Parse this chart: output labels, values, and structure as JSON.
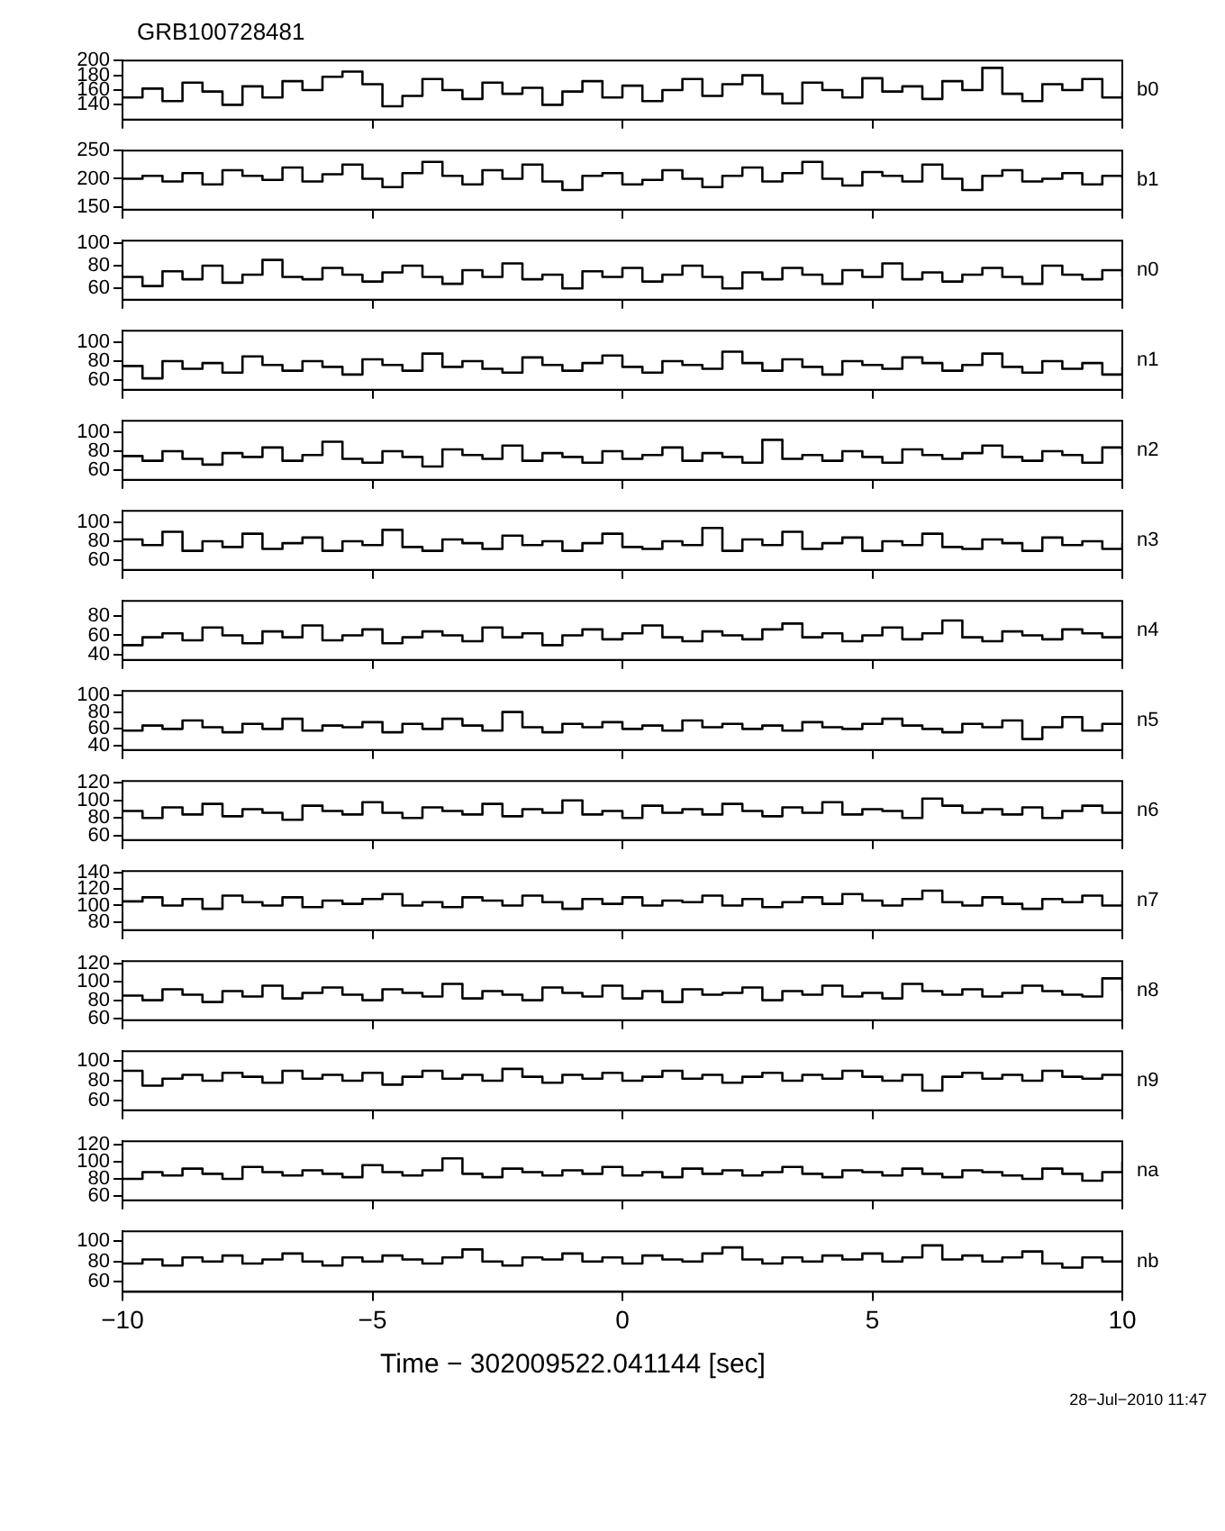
{
  "chart_data": [
    {
      "type": "step",
      "title": "GRB100728481",
      "x": [
        -10,
        -9.6,
        -9.2,
        -8.8,
        -8.4,
        -8,
        -7.6,
        -7.2,
        -6.8,
        -6.4,
        -6,
        -5.6,
        -5.2,
        -4.8,
        -4.4,
        -4,
        -3.6,
        -3.2,
        -2.8,
        -2.4,
        -2,
        -1.6,
        -1.2,
        -0.8,
        -0.4,
        0,
        0.4,
        0.8,
        1.2,
        1.6,
        2,
        2.4,
        2.8,
        3.2,
        3.6,
        4,
        4.4,
        4.8,
        5.2,
        5.6,
        6,
        6.4,
        6.8,
        7.2,
        7.6,
        8,
        8.4,
        8.8,
        9.2,
        9.6,
        10
      ],
      "xlim": [
        -10,
        10
      ],
      "xticks": [
        -10,
        -5,
        0,
        5,
        10
      ],
      "ylim": [
        120,
        200
      ],
      "yticks": [
        140,
        160,
        180,
        200
      ],
      "tick_labels": "y",
      "series": [
        {
          "name": "b0",
          "color": "#000000",
          "values": [
            150,
            162,
            145,
            170,
            158,
            140,
            165,
            150,
            172,
            160,
            178,
            185,
            168,
            138,
            152,
            175,
            160,
            148,
            170,
            155,
            163,
            140,
            158,
            172,
            150,
            166,
            145,
            160,
            175,
            152,
            168,
            180,
            155,
            142,
            170,
            160,
            150,
            176,
            158,
            165,
            148,
            172,
            160,
            190,
            155,
            145,
            168,
            160,
            175,
            150,
            158
          ]
        }
      ]
    },
    {
      "type": "step",
      "x": [
        -10,
        -9.6,
        -9.2,
        -8.8,
        -8.4,
        -8,
        -7.6,
        -7.2,
        -6.8,
        -6.4,
        -6,
        -5.6,
        -5.2,
        -4.8,
        -4.4,
        -4,
        -3.6,
        -3.2,
        -2.8,
        -2.4,
        -2,
        -1.6,
        -1.2,
        -0.8,
        -0.4,
        0,
        0.4,
        0.8,
        1.2,
        1.6,
        2,
        2.4,
        2.8,
        3.2,
        3.6,
        4,
        4.4,
        4.8,
        5.2,
        5.6,
        6,
        6.4,
        6.8,
        7.2,
        7.6,
        8,
        8.4,
        8.8,
        9.2,
        9.6,
        10
      ],
      "xlim": [
        -10,
        10
      ],
      "xticks": [
        -10,
        -5,
        0,
        5,
        10
      ],
      "ylim": [
        145,
        250
      ],
      "yticks": [
        150,
        200,
        250
      ],
      "tick_labels": "y",
      "series": [
        {
          "name": "b1",
          "color": "#000000",
          "values": [
            200,
            205,
            195,
            210,
            190,
            215,
            205,
            198,
            220,
            195,
            208,
            225,
            200,
            185,
            210,
            230,
            205,
            190,
            215,
            200,
            225,
            195,
            180,
            205,
            210,
            190,
            198,
            215,
            200,
            185,
            205,
            220,
            195,
            210,
            230,
            200,
            188,
            212,
            205,
            195,
            225,
            200,
            180,
            205,
            215,
            195,
            200,
            210,
            190,
            205,
            200
          ]
        }
      ]
    },
    {
      "type": "step",
      "x": [
        -10,
        -9.6,
        -9.2,
        -8.8,
        -8.4,
        -8,
        -7.6,
        -7.2,
        -6.8,
        -6.4,
        -6,
        -5.6,
        -5.2,
        -4.8,
        -4.4,
        -4,
        -3.6,
        -3.2,
        -2.8,
        -2.4,
        -2,
        -1.6,
        -1.2,
        -0.8,
        -0.4,
        0,
        0.4,
        0.8,
        1.2,
        1.6,
        2,
        2.4,
        2.8,
        3.2,
        3.6,
        4,
        4.4,
        4.8,
        5.2,
        5.6,
        6,
        6.4,
        6.8,
        7.2,
        7.6,
        8,
        8.4,
        8.8,
        9.2,
        9.6,
        10
      ],
      "xlim": [
        -10,
        10
      ],
      "xticks": [
        -10,
        -5,
        0,
        5,
        10
      ],
      "ylim": [
        50,
        102
      ],
      "yticks": [
        60,
        80,
        100
      ],
      "tick_labels": "y",
      "series": [
        {
          "name": "n0",
          "color": "#000000",
          "values": [
            70,
            62,
            75,
            68,
            80,
            65,
            72,
            85,
            70,
            68,
            78,
            72,
            66,
            74,
            80,
            70,
            64,
            76,
            70,
            82,
            68,
            72,
            60,
            75,
            70,
            78,
            66,
            72,
            80,
            70,
            60,
            74,
            68,
            78,
            72,
            64,
            76,
            70,
            82,
            68,
            74,
            66,
            72,
            78,
            70,
            64,
            80,
            72,
            68,
            76,
            70
          ]
        }
      ]
    },
    {
      "type": "step",
      "x": [
        -10,
        -9.6,
        -9.2,
        -8.8,
        -8.4,
        -8,
        -7.6,
        -7.2,
        -6.8,
        -6.4,
        -6,
        -5.6,
        -5.2,
        -4.8,
        -4.4,
        -4,
        -3.6,
        -3.2,
        -2.8,
        -2.4,
        -2,
        -1.6,
        -1.2,
        -0.8,
        -0.4,
        0,
        0.4,
        0.8,
        1.2,
        1.6,
        2,
        2.4,
        2.8,
        3.2,
        3.6,
        4,
        4.4,
        4.8,
        5.2,
        5.6,
        6,
        6.4,
        6.8,
        7.2,
        7.6,
        8,
        8.4,
        8.8,
        9.2,
        9.6,
        10
      ],
      "xlim": [
        -10,
        10
      ],
      "xticks": [
        -10,
        -5,
        0,
        5,
        10
      ],
      "ylim": [
        50,
        112
      ],
      "yticks": [
        60,
        80,
        100
      ],
      "tick_labels": "y",
      "series": [
        {
          "name": "n1",
          "color": "#000000",
          "values": [
            75,
            62,
            80,
            72,
            78,
            68,
            85,
            76,
            70,
            80,
            74,
            66,
            82,
            76,
            70,
            88,
            74,
            80,
            72,
            68,
            84,
            76,
            70,
            78,
            86,
            74,
            68,
            80,
            76,
            72,
            90,
            78,
            70,
            82,
            74,
            66,
            80,
            76,
            72,
            84,
            78,
            70,
            76,
            88,
            74,
            68,
            80,
            72,
            78,
            66,
            74
          ]
        }
      ]
    },
    {
      "type": "step",
      "x": [
        -10,
        -9.6,
        -9.2,
        -8.8,
        -8.4,
        -8,
        -7.6,
        -7.2,
        -6.8,
        -6.4,
        -6,
        -5.6,
        -5.2,
        -4.8,
        -4.4,
        -4,
        -3.6,
        -3.2,
        -2.8,
        -2.4,
        -2,
        -1.6,
        -1.2,
        -0.8,
        -0.4,
        0,
        0.4,
        0.8,
        1.2,
        1.6,
        2,
        2.4,
        2.8,
        3.2,
        3.6,
        4,
        4.4,
        4.8,
        5.2,
        5.6,
        6,
        6.4,
        6.8,
        7.2,
        7.6,
        8,
        8.4,
        8.8,
        9.2,
        9.6,
        10
      ],
      "xlim": [
        -10,
        10
      ],
      "xticks": [
        -10,
        -5,
        0,
        5,
        10
      ],
      "ylim": [
        50,
        112
      ],
      "yticks": [
        60,
        80,
        100
      ],
      "tick_labels": "y",
      "series": [
        {
          "name": "n2",
          "color": "#000000",
          "values": [
            75,
            70,
            80,
            72,
            66,
            78,
            74,
            84,
            70,
            76,
            90,
            72,
            68,
            80,
            74,
            64,
            82,
            76,
            72,
            86,
            70,
            78,
            74,
            68,
            80,
            72,
            76,
            84,
            70,
            78,
            74,
            68,
            92,
            72,
            76,
            70,
            80,
            74,
            68,
            82,
            76,
            72,
            78,
            86,
            74,
            70,
            80,
            76,
            68,
            84,
            76
          ]
        }
      ]
    },
    {
      "type": "step",
      "x": [
        -10,
        -9.6,
        -9.2,
        -8.8,
        -8.4,
        -8,
        -7.6,
        -7.2,
        -6.8,
        -6.4,
        -6,
        -5.6,
        -5.2,
        -4.8,
        -4.4,
        -4,
        -3.6,
        -3.2,
        -2.8,
        -2.4,
        -2,
        -1.6,
        -1.2,
        -0.8,
        -0.4,
        0,
        0.4,
        0.8,
        1.2,
        1.6,
        2,
        2.4,
        2.8,
        3.2,
        3.6,
        4,
        4.4,
        4.8,
        5.2,
        5.6,
        6,
        6.4,
        6.8,
        7.2,
        7.6,
        8,
        8.4,
        8.8,
        9.2,
        9.6,
        10
      ],
      "xlim": [
        -10,
        10
      ],
      "xticks": [
        -10,
        -5,
        0,
        5,
        10
      ],
      "ylim": [
        50,
        112
      ],
      "yticks": [
        60,
        80,
        100
      ],
      "tick_labels": "y",
      "series": [
        {
          "name": "n3",
          "color": "#000000",
          "values": [
            82,
            76,
            90,
            70,
            80,
            74,
            88,
            72,
            78,
            84,
            70,
            80,
            76,
            92,
            74,
            70,
            82,
            78,
            72,
            86,
            76,
            80,
            70,
            78,
            88,
            74,
            72,
            80,
            76,
            94,
            70,
            82,
            76,
            90,
            72,
            78,
            84,
            70,
            80,
            76,
            88,
            74,
            72,
            82,
            78,
            70,
            84,
            76,
            80,
            72,
            78
          ]
        }
      ]
    },
    {
      "type": "step",
      "x": [
        -10,
        -9.6,
        -9.2,
        -8.8,
        -8.4,
        -8,
        -7.6,
        -7.2,
        -6.8,
        -6.4,
        -6,
        -5.6,
        -5.2,
        -4.8,
        -4.4,
        -4,
        -3.6,
        -3.2,
        -2.8,
        -2.4,
        -2,
        -1.6,
        -1.2,
        -0.8,
        -0.4,
        0,
        0.4,
        0.8,
        1.2,
        1.6,
        2,
        2.4,
        2.8,
        3.2,
        3.6,
        4,
        4.4,
        4.8,
        5.2,
        5.6,
        6,
        6.4,
        6.8,
        7.2,
        7.6,
        8,
        8.4,
        8.8,
        9.2,
        9.6,
        10
      ],
      "xlim": [
        -10,
        10
      ],
      "xticks": [
        -10,
        -5,
        0,
        5,
        10
      ],
      "ylim": [
        35,
        95
      ],
      "yticks": [
        40,
        60,
        80
      ],
      "tick_labels": "y",
      "series": [
        {
          "name": "n4",
          "color": "#000000",
          "values": [
            50,
            58,
            62,
            55,
            68,
            60,
            52,
            64,
            58,
            70,
            55,
            60,
            66,
            52,
            58,
            64,
            60,
            54,
            68,
            58,
            62,
            50,
            60,
            66,
            56,
            62,
            70,
            58,
            54,
            64,
            60,
            56,
            66,
            72,
            58,
            62,
            54,
            60,
            68,
            56,
            62,
            75,
            58,
            54,
            64,
            60,
            56,
            66,
            62,
            58,
            60
          ]
        }
      ]
    },
    {
      "type": "step",
      "x": [
        -10,
        -9.6,
        -9.2,
        -8.8,
        -8.4,
        -8,
        -7.6,
        -7.2,
        -6.8,
        -6.4,
        -6,
        -5.6,
        -5.2,
        -4.8,
        -4.4,
        -4,
        -3.6,
        -3.2,
        -2.8,
        -2.4,
        -2,
        -1.6,
        -1.2,
        -0.8,
        -0.4,
        0,
        0.4,
        0.8,
        1.2,
        1.6,
        2,
        2.4,
        2.8,
        3.2,
        3.6,
        4,
        4.4,
        4.8,
        5.2,
        5.6,
        6,
        6.4,
        6.8,
        7.2,
        7.6,
        8,
        8.4,
        8.8,
        9.2,
        9.6,
        10
      ],
      "xlim": [
        -10,
        10
      ],
      "xticks": [
        -10,
        -5,
        0,
        5,
        10
      ],
      "ylim": [
        35,
        105
      ],
      "yticks": [
        40,
        60,
        80,
        100
      ],
      "tick_labels": "y",
      "series": [
        {
          "name": "n5",
          "color": "#000000",
          "values": [
            58,
            64,
            60,
            70,
            62,
            56,
            66,
            60,
            72,
            58,
            64,
            62,
            68,
            56,
            66,
            60,
            72,
            64,
            58,
            80,
            62,
            56,
            66,
            62,
            68,
            60,
            64,
            58,
            70,
            62,
            66,
            60,
            64,
            58,
            68,
            62,
            60,
            66,
            72,
            64,
            60,
            56,
            66,
            62,
            70,
            48,
            62,
            74,
            58,
            66,
            64
          ]
        }
      ]
    },
    {
      "type": "step",
      "x": [
        -10,
        -9.6,
        -9.2,
        -8.8,
        -8.4,
        -8,
        -7.6,
        -7.2,
        -6.8,
        -6.4,
        -6,
        -5.6,
        -5.2,
        -4.8,
        -4.4,
        -4,
        -3.6,
        -3.2,
        -2.8,
        -2.4,
        -2,
        -1.6,
        -1.2,
        -0.8,
        -0.4,
        0,
        0.4,
        0.8,
        1.2,
        1.6,
        2,
        2.4,
        2.8,
        3.2,
        3.6,
        4,
        4.4,
        4.8,
        5.2,
        5.6,
        6,
        6.4,
        6.8,
        7.2,
        7.6,
        8,
        8.4,
        8.8,
        9.2,
        9.6,
        10
      ],
      "xlim": [
        -10,
        10
      ],
      "xticks": [
        -10,
        -5,
        0,
        5,
        10
      ],
      "ylim": [
        55,
        122
      ],
      "yticks": [
        60,
        80,
        100,
        120
      ],
      "tick_labels": "y",
      "series": [
        {
          "name": "n6",
          "color": "#000000",
          "values": [
            88,
            80,
            92,
            84,
            96,
            82,
            90,
            86,
            78,
            94,
            88,
            84,
            98,
            86,
            80,
            92,
            88,
            84,
            96,
            82,
            90,
            86,
            100,
            84,
            88,
            80,
            94,
            86,
            90,
            84,
            96,
            88,
            82,
            92,
            86,
            98,
            84,
            90,
            88,
            80,
            102,
            94,
            86,
            90,
            84,
            92,
            80,
            88,
            94,
            86,
            90
          ]
        }
      ]
    },
    {
      "type": "step",
      "x": [
        -10,
        -9.6,
        -9.2,
        -8.8,
        -8.4,
        -8,
        -7.6,
        -7.2,
        -6.8,
        -6.4,
        -6,
        -5.6,
        -5.2,
        -4.8,
        -4.4,
        -4,
        -3.6,
        -3.2,
        -2.8,
        -2.4,
        -2,
        -1.6,
        -1.2,
        -0.8,
        -0.4,
        0,
        0.4,
        0.8,
        1.2,
        1.6,
        2,
        2.4,
        2.8,
        3.2,
        3.6,
        4,
        4.4,
        4.8,
        5.2,
        5.6,
        6,
        6.4,
        6.8,
        7.2,
        7.6,
        8,
        8.4,
        8.8,
        9.2,
        9.6,
        10
      ],
      "xlim": [
        -10,
        10
      ],
      "xticks": [
        -10,
        -5,
        0,
        5,
        10
      ],
      "ylim": [
        70,
        142
      ],
      "yticks": [
        80,
        100,
        120,
        140
      ],
      "tick_labels": "y",
      "series": [
        {
          "name": "n7",
          "color": "#000000",
          "values": [
            105,
            110,
            100,
            108,
            96,
            112,
            104,
            100,
            110,
            98,
            106,
            102,
            108,
            114,
            100,
            104,
            98,
            110,
            106,
            100,
            112,
            104,
            96,
            108,
            102,
            110,
            100,
            106,
            104,
            112,
            100,
            108,
            98,
            104,
            110,
            102,
            114,
            106,
            100,
            108,
            118,
            104,
            100,
            110,
            102,
            96,
            108,
            104,
            112,
            100,
            106
          ]
        }
      ]
    },
    {
      "type": "step",
      "x": [
        -10,
        -9.6,
        -9.2,
        -8.8,
        -8.4,
        -8,
        -7.6,
        -7.2,
        -6.8,
        -6.4,
        -6,
        -5.6,
        -5.2,
        -4.8,
        -4.4,
        -4,
        -3.6,
        -3.2,
        -2.8,
        -2.4,
        -2,
        -1.6,
        -1.2,
        -0.8,
        -0.4,
        0,
        0.4,
        0.8,
        1.2,
        1.6,
        2,
        2.4,
        2.8,
        3.2,
        3.6,
        4,
        4.4,
        4.8,
        5.2,
        5.6,
        6,
        6.4,
        6.8,
        7.2,
        7.6,
        8,
        8.4,
        8.8,
        9.2,
        9.6,
        10
      ],
      "xlim": [
        -10,
        10
      ],
      "xticks": [
        -10,
        -5,
        0,
        5,
        10
      ],
      "ylim": [
        58,
        123
      ],
      "yticks": [
        60,
        80,
        100,
        120
      ],
      "tick_labels": "y",
      "series": [
        {
          "name": "n8",
          "color": "#000000",
          "values": [
            85,
            80,
            92,
            86,
            78,
            90,
            84,
            96,
            82,
            88,
            94,
            86,
            80,
            92,
            88,
            84,
            98,
            82,
            90,
            86,
            80,
            94,
            88,
            84,
            96,
            82,
            90,
            78,
            92,
            86,
            88,
            94,
            80,
            90,
            86,
            96,
            84,
            88,
            82,
            98,
            90,
            86,
            92,
            84,
            88,
            96,
            90,
            86,
            84,
            104,
            90
          ]
        }
      ]
    },
    {
      "type": "step",
      "x": [
        -10,
        -9.6,
        -9.2,
        -8.8,
        -8.4,
        -8,
        -7.6,
        -7.2,
        -6.8,
        -6.4,
        -6,
        -5.6,
        -5.2,
        -4.8,
        -4.4,
        -4,
        -3.6,
        -3.2,
        -2.8,
        -2.4,
        -2,
        -1.6,
        -1.2,
        -0.8,
        -0.4,
        0,
        0.4,
        0.8,
        1.2,
        1.6,
        2,
        2.4,
        2.8,
        3.2,
        3.6,
        4,
        4.4,
        4.8,
        5.2,
        5.6,
        6,
        6.4,
        6.8,
        7.2,
        7.6,
        8,
        8.4,
        8.8,
        9.2,
        9.6,
        10
      ],
      "xlim": [
        -10,
        10
      ],
      "xticks": [
        -10,
        -5,
        0,
        5,
        10
      ],
      "ylim": [
        50,
        110
      ],
      "yticks": [
        60,
        80,
        100
      ],
      "tick_labels": "y",
      "series": [
        {
          "name": "n9",
          "color": "#000000",
          "values": [
            90,
            75,
            82,
            86,
            80,
            88,
            84,
            78,
            90,
            82,
            86,
            80,
            88,
            76,
            84,
            90,
            82,
            86,
            80,
            92,
            84,
            78,
            86,
            82,
            88,
            80,
            84,
            90,
            82,
            86,
            78,
            84,
            88,
            80,
            86,
            82,
            90,
            84,
            80,
            86,
            70,
            84,
            88,
            82,
            86,
            80,
            90,
            84,
            82,
            86,
            84
          ]
        }
      ]
    },
    {
      "type": "step",
      "x": [
        -10,
        -9.6,
        -9.2,
        -8.8,
        -8.4,
        -8,
        -7.6,
        -7.2,
        -6.8,
        -6.4,
        -6,
        -5.6,
        -5.2,
        -4.8,
        -4.4,
        -4,
        -3.6,
        -3.2,
        -2.8,
        -2.4,
        -2,
        -1.6,
        -1.2,
        -0.8,
        -0.4,
        0,
        0.4,
        0.8,
        1.2,
        1.6,
        2,
        2.4,
        2.8,
        3.2,
        3.6,
        4,
        4.4,
        4.8,
        5.2,
        5.6,
        6,
        6.4,
        6.8,
        7.2,
        7.6,
        8,
        8.4,
        8.8,
        9.2,
        9.6,
        10
      ],
      "xlim": [
        -10,
        10
      ],
      "xticks": [
        -10,
        -5,
        0,
        5,
        10
      ],
      "ylim": [
        55,
        124
      ],
      "yticks": [
        60,
        80,
        100,
        120
      ],
      "tick_labels": "y",
      "series": [
        {
          "name": "na",
          "color": "#000000",
          "values": [
            80,
            88,
            84,
            92,
            86,
            80,
            94,
            88,
            84,
            90,
            86,
            82,
            96,
            88,
            84,
            90,
            104,
            86,
            82,
            92,
            88,
            84,
            90,
            86,
            94,
            84,
            88,
            82,
            92,
            86,
            90,
            84,
            88,
            94,
            86,
            82,
            90,
            88,
            84,
            92,
            86,
            82,
            90,
            88,
            84,
            80,
            92,
            86,
            78,
            88,
            100
          ]
        }
      ]
    },
    {
      "type": "step",
      "xlabel": "Time − 302009522.041144 [sec]",
      "annotations": [
        "28−Jul−2010 11:47"
      ],
      "x": [
        -10,
        -9.6,
        -9.2,
        -8.8,
        -8.4,
        -8,
        -7.6,
        -7.2,
        -6.8,
        -6.4,
        -6,
        -5.6,
        -5.2,
        -4.8,
        -4.4,
        -4,
        -3.6,
        -3.2,
        -2.8,
        -2.4,
        -2,
        -1.6,
        -1.2,
        -0.8,
        -0.4,
        0,
        0.4,
        0.8,
        1.2,
        1.6,
        2,
        2.4,
        2.8,
        3.2,
        3.6,
        4,
        4.4,
        4.8,
        5.2,
        5.6,
        6,
        6.4,
        6.8,
        7.2,
        7.6,
        8,
        8.4,
        8.8,
        9.2,
        9.6,
        10
      ],
      "xlim": [
        -10,
        10
      ],
      "xticks": [
        -10,
        -5,
        0,
        5,
        10
      ],
      "ylim": [
        50,
        110
      ],
      "yticks": [
        60,
        80,
        100
      ],
      "series": [
        {
          "name": "nb",
          "color": "#000000",
          "values": [
            78,
            82,
            76,
            84,
            80,
            86,
            78,
            82,
            88,
            80,
            76,
            84,
            80,
            86,
            82,
            78,
            84,
            92,
            80,
            76,
            84,
            82,
            88,
            80,
            84,
            78,
            86,
            82,
            80,
            88,
            94,
            82,
            78,
            84,
            80,
            86,
            82,
            88,
            80,
            84,
            96,
            82,
            86,
            80,
            84,
            90,
            78,
            74,
            84,
            80,
            82
          ]
        }
      ]
    }
  ]
}
